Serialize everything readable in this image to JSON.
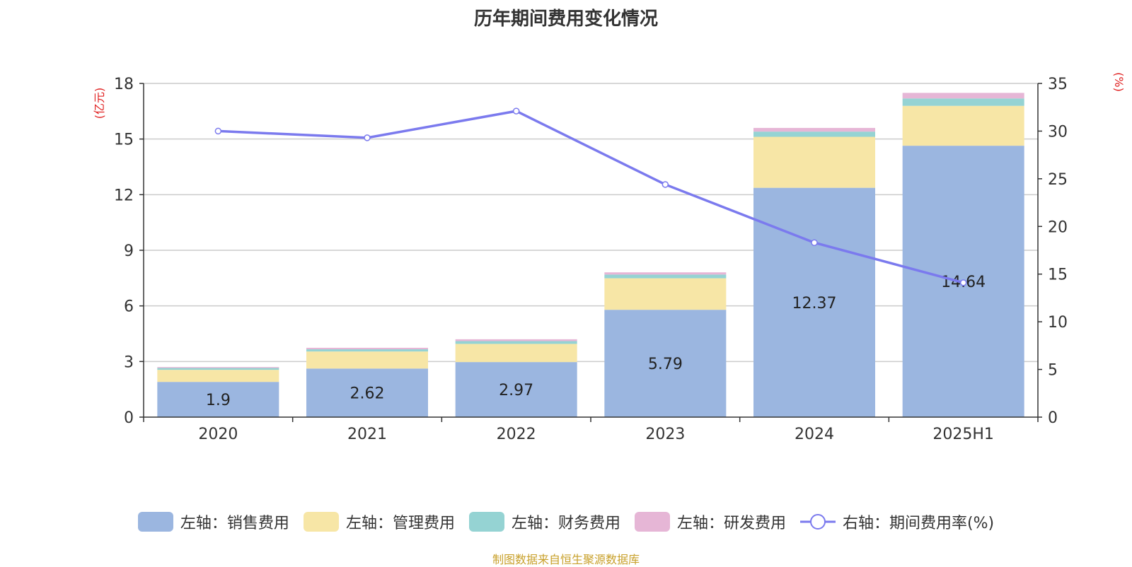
{
  "title": "历年期间费用变化情况",
  "source": "制图数据来自恒生聚源数据库",
  "left_unit": "(亿元)",
  "right_unit": "(%)",
  "colors": {
    "sales": "#9bb6e0",
    "admin": "#f7e6a6",
    "finance": "#95d3d3",
    "rd": "#e6b6d6",
    "rate": "#7b7aee"
  },
  "legend": [
    {
      "key": "sales",
      "label": "左轴：销售费用"
    },
    {
      "key": "admin",
      "label": "左轴：管理费用"
    },
    {
      "key": "finance",
      "label": "左轴：财务费用"
    },
    {
      "key": "rd",
      "label": "左轴：研发费用"
    },
    {
      "key": "rate",
      "label": "右轴：期间费用率(%)"
    }
  ],
  "chart_data": {
    "type": "bar",
    "stacked": true,
    "categories": [
      "2020",
      "2021",
      "2022",
      "2023",
      "2024",
      "2025H1"
    ],
    "series": [
      {
        "name": "左轴：销售费用",
        "key": "sales",
        "axis": "left",
        "values": [
          1.9,
          2.62,
          2.97,
          5.79,
          12.37,
          14.64
        ],
        "data_labels": [
          "1.9",
          "2.62",
          "2.97",
          "5.79",
          "12.37",
          "14.64"
        ]
      },
      {
        "name": "左轴：管理费用",
        "key": "admin",
        "axis": "left",
        "values": [
          0.65,
          0.92,
          0.98,
          1.7,
          2.75,
          2.15
        ]
      },
      {
        "name": "左轴：财务费用",
        "key": "finance",
        "axis": "left",
        "values": [
          0.1,
          0.12,
          0.15,
          0.2,
          0.28,
          0.4
        ]
      },
      {
        "name": "左轴：研发费用",
        "key": "rd",
        "axis": "left",
        "values": [
          0.05,
          0.08,
          0.1,
          0.12,
          0.2,
          0.3
        ]
      },
      {
        "name": "右轴：期间费用率(%)",
        "key": "rate",
        "axis": "right",
        "type": "line",
        "values": [
          30.0,
          29.3,
          32.1,
          24.4,
          18.3,
          14.1
        ]
      }
    ],
    "left_axis": {
      "min": 0,
      "max": 18,
      "ticks": [
        0,
        3,
        6,
        9,
        12,
        15,
        18
      ]
    },
    "right_axis": {
      "min": 0,
      "max": 35,
      "ticks": [
        0,
        5,
        10,
        15,
        20,
        25,
        30,
        35
      ]
    },
    "grid": true,
    "legend_position": "bottom"
  }
}
